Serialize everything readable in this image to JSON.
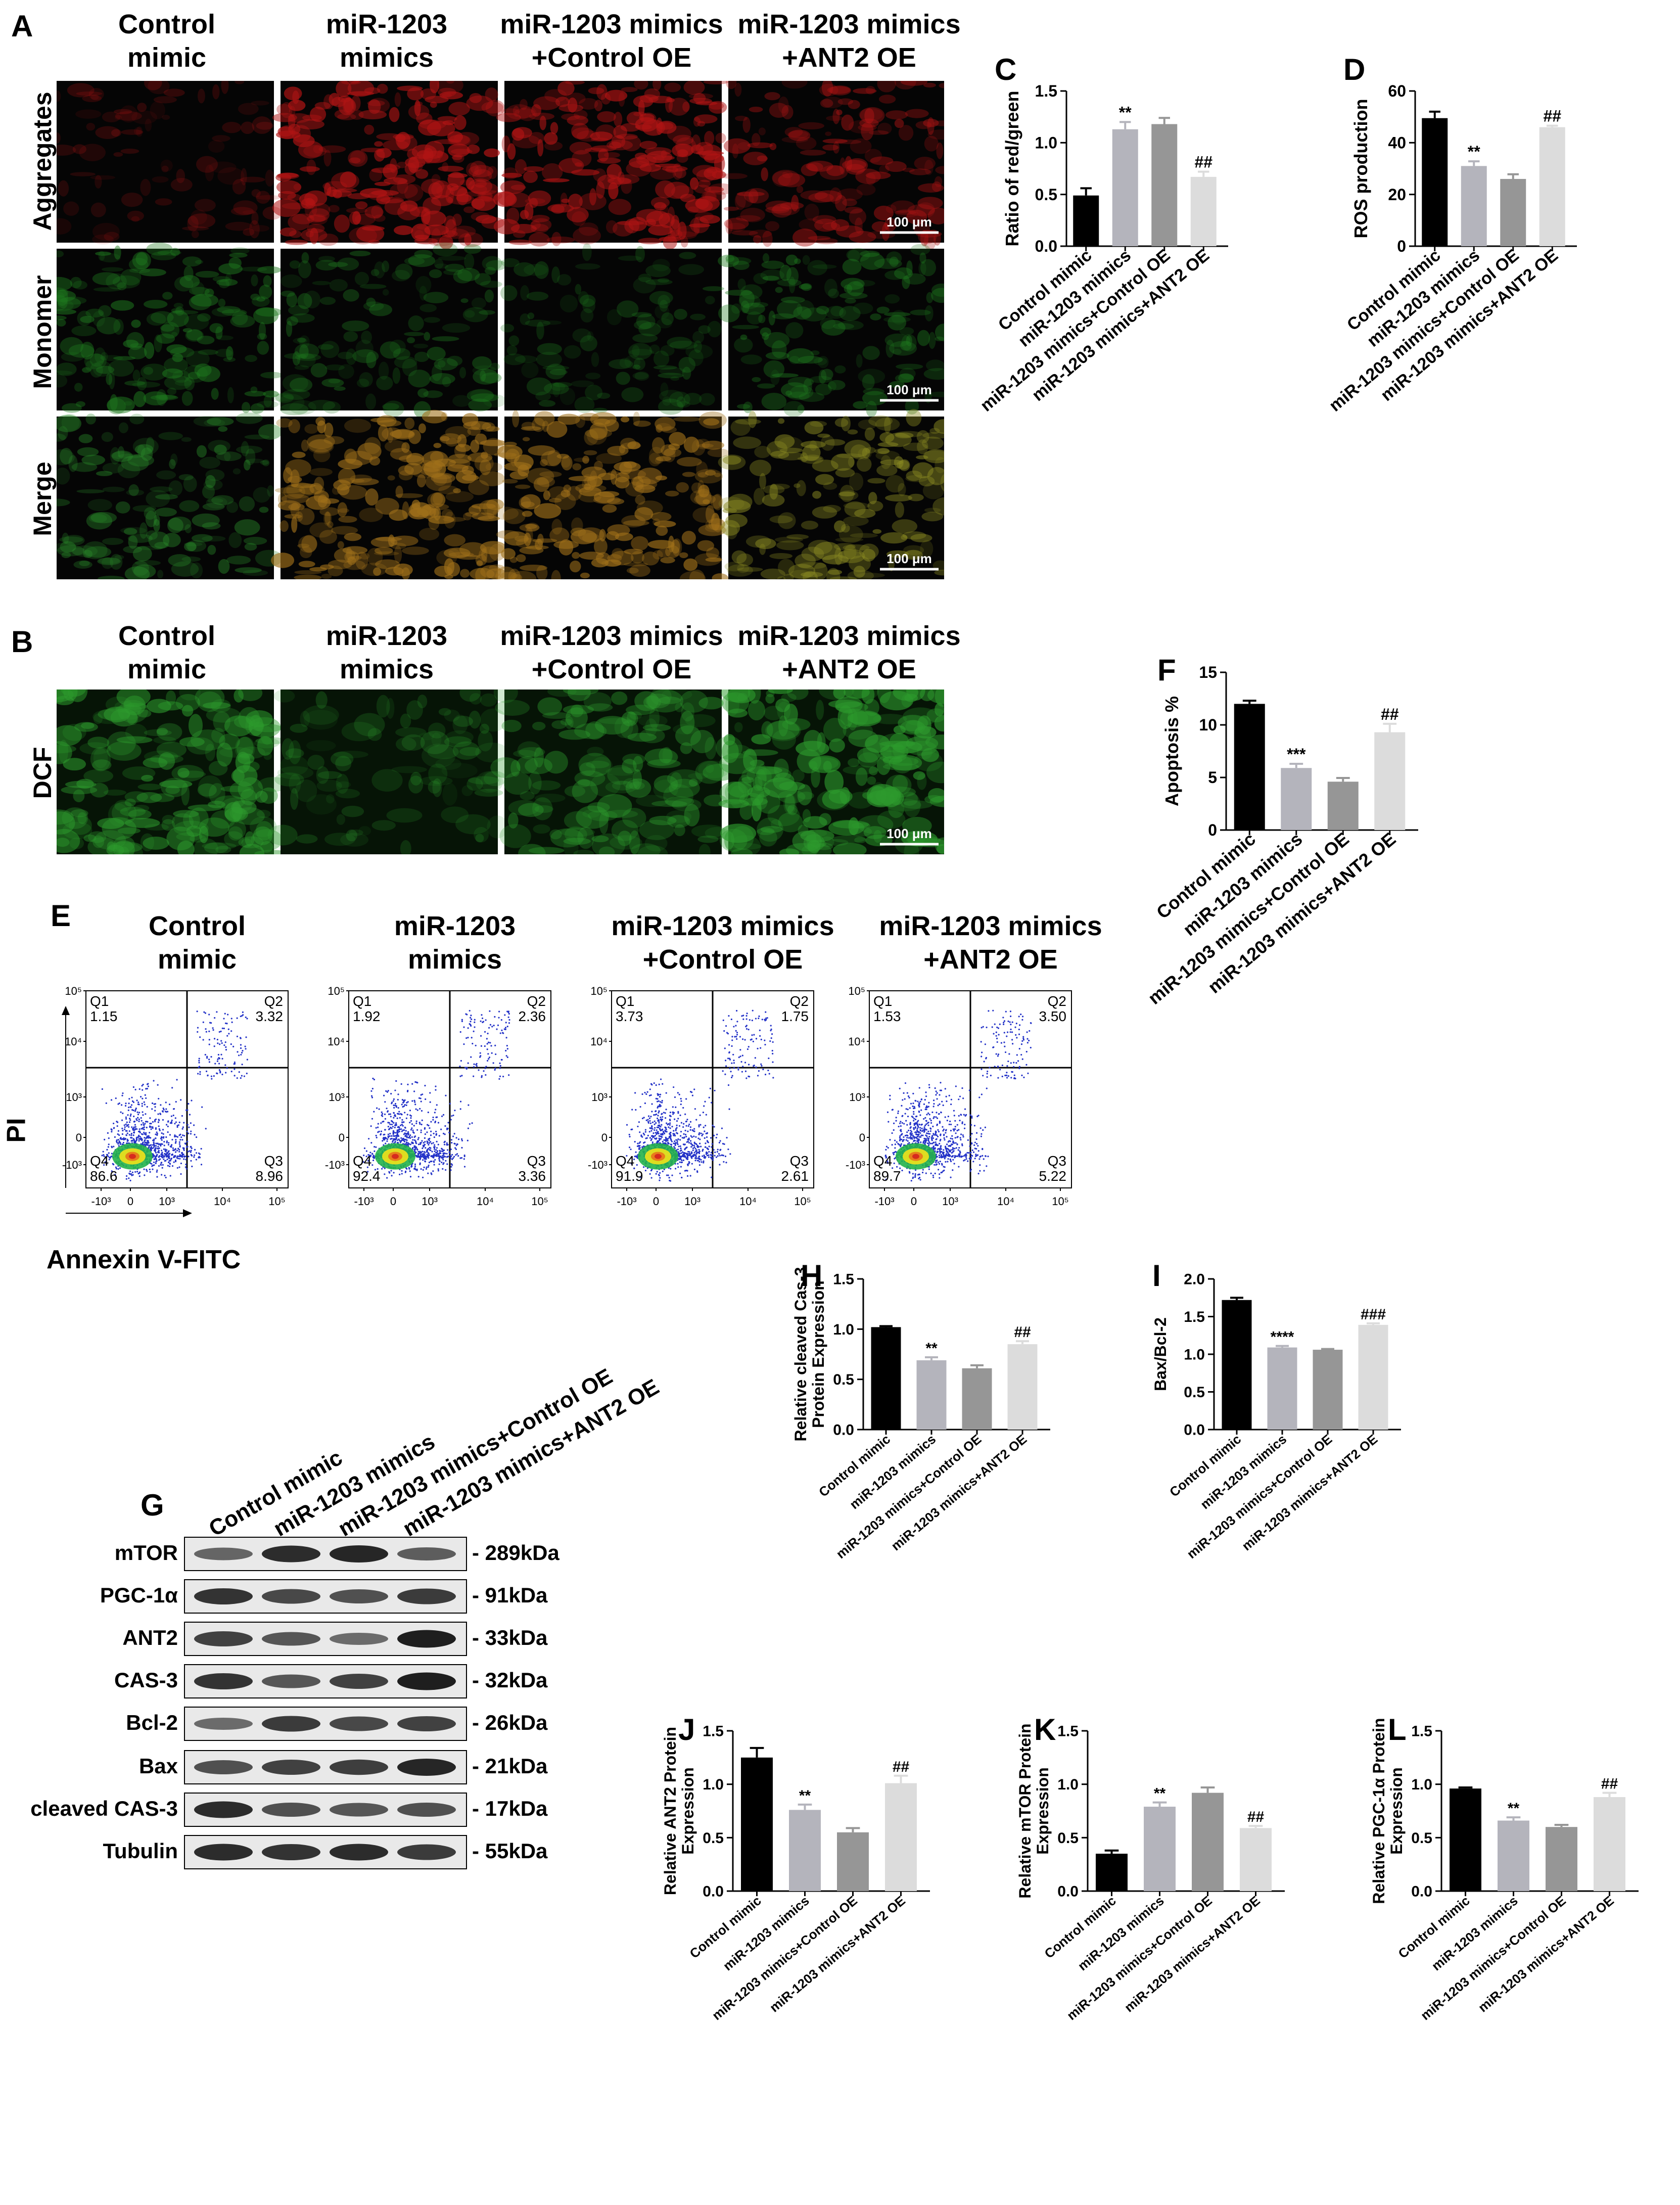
{
  "figure": {
    "panel_labels": {
      "A": "A",
      "B": "B",
      "C": "C",
      "D": "D",
      "E": "E",
      "F": "F",
      "G": "G",
      "H": "H",
      "I": "I",
      "J": "J",
      "K": "K",
      "L": "L"
    },
    "groups": [
      "Control\nmimic",
      "miR-1203\nmimics",
      "miR-1203 mimics\n+Control OE",
      "miR-1203 mimics\n+ANT2 OE"
    ],
    "panel_a": {
      "rows": [
        "Aggregates",
        "Monomer",
        "Merge"
      ],
      "scale_bar": "100 μm",
      "row_colors": [
        "#b01414",
        "#1f7a1f",
        "#a0701a"
      ]
    },
    "panel_b": {
      "row": "DCF",
      "scale_bar": "100 μm",
      "color": "#2d9a2d"
    },
    "panel_e": {
      "y_axis": "PI",
      "x_axis": "Annexin V-FITC",
      "quadrant_labels": [
        "Q1",
        "Q2",
        "Q3",
        "Q4"
      ],
      "plots": [
        {
          "q1": "1.15",
          "q2": "3.32",
          "q3": "8.96",
          "q4": "86.6"
        },
        {
          "q1": "1.92",
          "q2": "2.36",
          "q3": "3.36",
          "q4": "92.4"
        },
        {
          "q1": "3.73",
          "q2": "1.75",
          "q3": "2.61",
          "q4": "91.9"
        },
        {
          "q1": "1.53",
          "q2": "3.50",
          "q3": "5.22",
          "q4": "89.7"
        }
      ]
    },
    "panel_g": {
      "lanes": [
        "Control mimic",
        "miR-1203 mimics",
        "miR-1203 mimics+Control OE",
        "miR-1203 mimics+ANT2 OE"
      ],
      "bands": [
        {
          "protein": "mTOR",
          "size": "- 289kDa"
        },
        {
          "protein": "PGC-1α",
          "size": "- 91kDa"
        },
        {
          "protein": "ANT2",
          "size": "- 33kDa"
        },
        {
          "protein": "CAS-3",
          "size": "- 32kDa"
        },
        {
          "protein": "Bcl-2",
          "size": "- 26kDa"
        },
        {
          "protein": "Bax",
          "size": "- 21kDa"
        },
        {
          "protein": "cleaved CAS-3",
          "size": "- 17kDa"
        },
        {
          "protein": "Tubulin",
          "size": "- 55kDa"
        }
      ]
    },
    "bar_colors": [
      "#000000",
      "#b4b4bc",
      "#969696",
      "#dcdcdc"
    ]
  },
  "chart_data": [
    {
      "id": "C",
      "type": "bar",
      "ylabel": "Ratio of red/green",
      "ylim": [
        0,
        1.5
      ],
      "ticks": [
        "0.0",
        "0.5",
        "1.0",
        "1.5"
      ],
      "categories": [
        "Control mimic",
        "miR-1203 mimics",
        "miR-1203 mimics+Control OE",
        "miR-1203 mimics+ANT2 OE"
      ],
      "values": [
        0.49,
        1.13,
        1.18,
        0.67
      ],
      "errors": [
        0.07,
        0.07,
        0.06,
        0.05
      ],
      "annotations": [
        "",
        "**",
        "",
        "##"
      ]
    },
    {
      "id": "D",
      "type": "bar",
      "ylabel": "ROS production",
      "ylim": [
        0,
        60
      ],
      "ticks": [
        "0",
        "20",
        "40",
        "60"
      ],
      "categories": [
        "Control mimic",
        "miR-1203 mimics",
        "miR-1203 mimics+Control OE",
        "miR-1203 mimics+ANT2 OE"
      ],
      "values": [
        49.5,
        31,
        26,
        46
      ],
      "errors": [
        2.5,
        1.8,
        1.8,
        0.6
      ],
      "annotations": [
        "",
        "**",
        "",
        "##"
      ]
    },
    {
      "id": "F",
      "type": "bar",
      "ylabel": "Apoptosis %",
      "ylim": [
        0,
        15
      ],
      "ticks": [
        "0",
        "5",
        "10",
        "15"
      ],
      "categories": [
        "Control mimic",
        "miR-1203 mimics",
        "miR-1203 mimics+Control OE",
        "miR-1203 mimics+ANT2 OE"
      ],
      "values": [
        12,
        5.9,
        4.6,
        9.3
      ],
      "errors": [
        0.3,
        0.4,
        0.35,
        0.8
      ],
      "annotations": [
        "",
        "***",
        "",
        "##"
      ]
    },
    {
      "id": "H",
      "type": "bar",
      "ylabel": "Relative cleaved Cas-3\nProtein Expression",
      "ylim": [
        0,
        1.5
      ],
      "ticks": [
        "0.0",
        "0.5",
        "1.0",
        "1.5"
      ],
      "categories": [
        "Control mimic",
        "miR-1203 mimics",
        "miR-1203 mimics+Control OE",
        "miR-1203 mimics+ANT2 OE"
      ],
      "values": [
        1.02,
        0.69,
        0.61,
        0.85
      ],
      "errors": [
        0.01,
        0.03,
        0.03,
        0.03
      ],
      "annotations": [
        "",
        "**",
        "",
        "##"
      ]
    },
    {
      "id": "I",
      "type": "bar",
      "ylabel": "Bax/Bcl-2",
      "ylim": [
        0,
        2.0
      ],
      "ticks": [
        "0.0",
        "0.5",
        "1.0",
        "1.5",
        "2.0"
      ],
      "categories": [
        "Control mimic",
        "miR-1203 mimics",
        "miR-1203 mimics+Control OE",
        "miR-1203 mimics+ANT2 OE"
      ],
      "values": [
        1.72,
        1.09,
        1.06,
        1.39
      ],
      "errors": [
        0.03,
        0.02,
        0.01,
        0.02
      ],
      "annotations": [
        "",
        "****",
        "",
        "###"
      ]
    },
    {
      "id": "J",
      "type": "bar",
      "ylabel": "Relative ANT2 Protein\nExpression",
      "ylim": [
        0,
        1.5
      ],
      "ticks": [
        "0.0",
        "0.5",
        "1.0",
        "1.5"
      ],
      "categories": [
        "Control mimic",
        "miR-1203 mimics",
        "miR-1203 mimics+Control OE",
        "miR-1203 mimics+ANT2 OE"
      ],
      "values": [
        1.25,
        0.76,
        0.55,
        1.01
      ],
      "errors": [
        0.09,
        0.05,
        0.04,
        0.07
      ],
      "annotations": [
        "",
        "**",
        "",
        "##"
      ]
    },
    {
      "id": "K",
      "type": "bar",
      "ylabel": "Relative mTOR Protein\nExpression",
      "ylim": [
        0,
        1.5
      ],
      "ticks": [
        "0.0",
        "0.5",
        "1.0",
        "1.5"
      ],
      "categories": [
        "Control mimic",
        "miR-1203 mimics",
        "miR-1203 mimics+Control OE",
        "miR-1203 mimics+ANT2 OE"
      ],
      "values": [
        0.35,
        0.79,
        0.92,
        0.59
      ],
      "errors": [
        0.03,
        0.04,
        0.05,
        0.02
      ],
      "annotations": [
        "",
        "**",
        "",
        "##"
      ]
    },
    {
      "id": "L",
      "type": "bar",
      "ylabel": "Relative PGC-1α Protein\nExpression",
      "ylim": [
        0,
        1.5
      ],
      "ticks": [
        "0.0",
        "0.5",
        "1.0",
        "1.5"
      ],
      "categories": [
        "Control mimic",
        "miR-1203 mimics",
        "miR-1203 mimics+Control OE",
        "miR-1203 mimics+ANT2 OE"
      ],
      "values": [
        0.96,
        0.66,
        0.6,
        0.88
      ],
      "errors": [
        0.01,
        0.03,
        0.02,
        0.04
      ],
      "annotations": [
        "",
        "**",
        "",
        "##"
      ]
    }
  ]
}
